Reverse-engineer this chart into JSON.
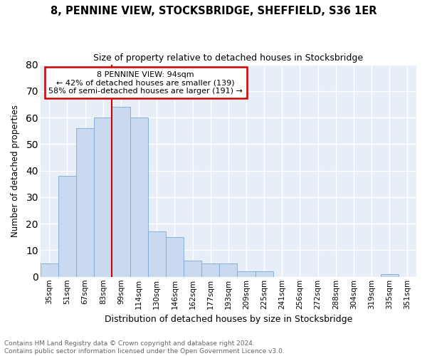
{
  "title": "8, PENNINE VIEW, STOCKSBRIDGE, SHEFFIELD, S36 1ER",
  "subtitle": "Size of property relative to detached houses in Stocksbridge",
  "xlabel": "Distribution of detached houses by size in Stocksbridge",
  "ylabel": "Number of detached properties",
  "categories": [
    "35sqm",
    "51sqm",
    "67sqm",
    "83sqm",
    "99sqm",
    "114sqm",
    "130sqm",
    "146sqm",
    "162sqm",
    "177sqm",
    "193sqm",
    "209sqm",
    "225sqm",
    "241sqm",
    "256sqm",
    "272sqm",
    "288sqm",
    "304sqm",
    "319sqm",
    "335sqm",
    "351sqm"
  ],
  "values": [
    5,
    38,
    56,
    60,
    64,
    60,
    17,
    15,
    6,
    5,
    5,
    2,
    2,
    0,
    0,
    0,
    0,
    0,
    0,
    1,
    0
  ],
  "bar_color": "#c9d9f0",
  "bar_edge_color": "#7aa8d8",
  "red_line_index": 4,
  "annotation_title": "8 PENNINE VIEW: 94sqm",
  "annotation_line1": "← 42% of detached houses are smaller (139)",
  "annotation_line2": "58% of semi-detached houses are larger (191) →",
  "ylim": [
    0,
    80
  ],
  "yticks": [
    0,
    10,
    20,
    30,
    40,
    50,
    60,
    70,
    80
  ],
  "annotation_box_color": "#ffffff",
  "annotation_box_edge": "#cc0000",
  "red_line_color": "#cc0000",
  "footer1": "Contains HM Land Registry data © Crown copyright and database right 2024.",
  "footer2": "Contains public sector information licensed under the Open Government Licence v3.0.",
  "background_color": "#e8eef8"
}
